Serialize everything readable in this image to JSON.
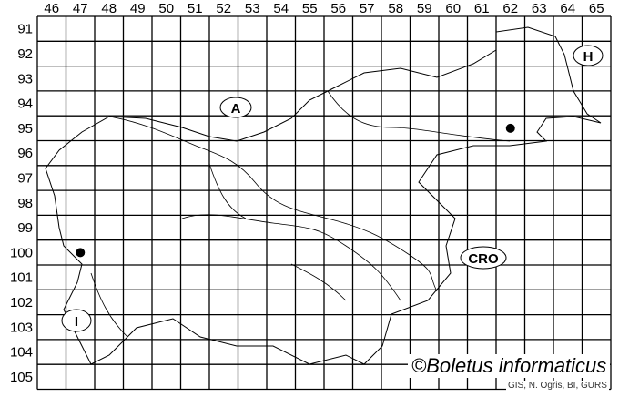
{
  "columns": [
    "46",
    "47",
    "48",
    "49",
    "50",
    "51",
    "52",
    "53",
    "54",
    "55",
    "56",
    "57",
    "58",
    "59",
    "60",
    "61",
    "62",
    "63",
    "64",
    "65"
  ],
  "rows": [
    "91",
    "92",
    "93",
    "94",
    "95",
    "96",
    "97",
    "98",
    "99",
    "100",
    "101",
    "102",
    "103",
    "104",
    "105"
  ],
  "country_labels": {
    "austria": "A",
    "hungary": "H",
    "croatia": "CRO",
    "italy": "I"
  },
  "records": [
    {
      "col": "47",
      "row": "100"
    },
    {
      "col": "62",
      "row": "95"
    }
  ],
  "credit": "©Boletus informaticus",
  "source": "GIS, N. Ogris, BI, GURS"
}
